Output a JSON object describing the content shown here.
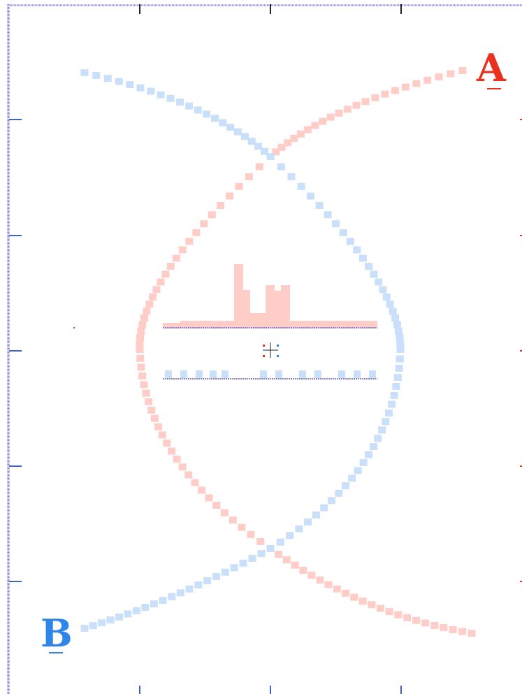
{
  "labels": {
    "a": "A",
    "b": "B"
  },
  "colors": {
    "a_accent": "#e8321f",
    "b_accent": "#2f86e8",
    "a_light": "#ffcdc8",
    "b_light": "#c9dffa",
    "ruler": "#8b7fd0",
    "ruler_tick": "#3a66c8",
    "background": "#ffffff"
  },
  "icons": {
    "center": "crosshair-icon"
  }
}
